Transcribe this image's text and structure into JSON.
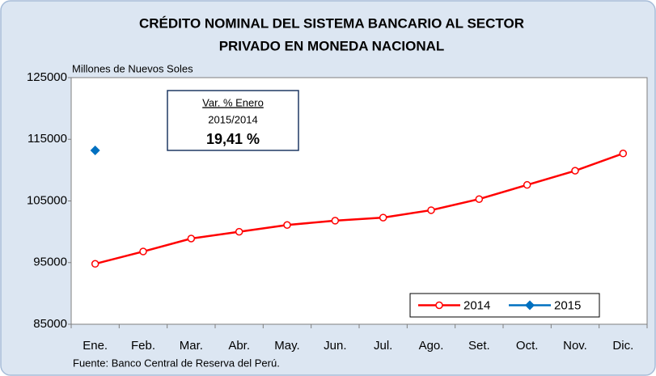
{
  "chart_data": {
    "type": "line",
    "title_lines": [
      "CRÉDITO NOMINAL DEL SISTEMA BANCARIO AL SECTOR",
      "PRIVADO EN MONEDA NACIONAL"
    ],
    "ylabel": "Millones  de Nuevos Soles",
    "categories": [
      "Ene.",
      "Feb.",
      "Mar.",
      "Abr.",
      "May.",
      "Jun.",
      "Jul.",
      "Ago.",
      "Set.",
      "Oct.",
      "Nov.",
      "Dic."
    ],
    "series": [
      {
        "name": "2014",
        "color": "#ff0000",
        "marker": "circle",
        "values": [
          94800,
          96800,
          98900,
          100000,
          101100,
          101800,
          102300,
          103500,
          105300,
          107600,
          109900,
          112700
        ]
      },
      {
        "name": "2015",
        "color": "#0070c0",
        "marker": "diamond",
        "values": [
          113200,
          null,
          null,
          null,
          null,
          null,
          null,
          null,
          null,
          null,
          null,
          null
        ]
      }
    ],
    "ylim": [
      85000,
      125000
    ],
    "yticks": [
      85000,
      95000,
      105000,
      115000,
      125000
    ],
    "grid": false,
    "legend": "lower right",
    "annotation": {
      "lines": [
        "Var. % Enero",
        "2015/2014",
        "19,41 %"
      ]
    },
    "source": "Fuente: Banco Central de Reserva del Perú."
  }
}
